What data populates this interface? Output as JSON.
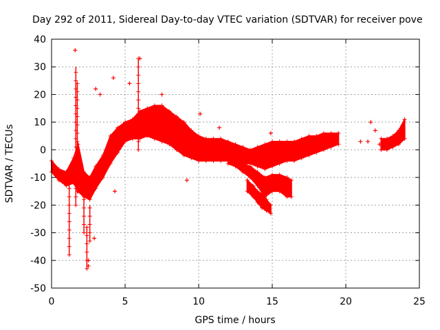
{
  "chart_data": {
    "type": "scatter",
    "title": "Day 292 of 2011, Sidereal Day-to-day VTEC variation (SDTVAR) for receiver pove",
    "xlabel": "GPS time / hours",
    "ylabel": "SDTVAR / TECUs",
    "xlim": [
      0,
      25
    ],
    "ylim": [
      -50,
      40
    ],
    "xticks": [
      0,
      5,
      10,
      15,
      20,
      25
    ],
    "yticks": [
      40,
      30,
      20,
      10,
      0,
      -10,
      -20,
      -30,
      -40,
      -50
    ],
    "grid": true,
    "series": [
      {
        "name": "SDTVAR",
        "color": "#ff0000",
        "marker": "+",
        "bands": [
          {
            "x": [
              0.0,
              0.5,
              1.0,
              1.5,
              1.8,
              2.2,
              2.6,
              3.0,
              3.5,
              4.0,
              4.5,
              5.0,
              5.5,
              6.0,
              6.5,
              7.0,
              7.5,
              8.0,
              8.5,
              9.0,
              9.5,
              10.0,
              10.5,
              11.0,
              11.5,
              12.0,
              12.5,
              13.0,
              13.5,
              14.0,
              14.5,
              15.0,
              15.5,
              16.0,
              16.5,
              17.0,
              17.5,
              18.0,
              18.5,
              19.0,
              19.5
            ],
            "low": [
              -8,
              -11,
              -13,
              -12,
              -15,
              -17,
              -18,
              -14,
              -10,
              -5,
              -1,
              3,
              4,
              4,
              5,
              4,
              3,
              2,
              0,
              -2,
              -3,
              -4,
              -4,
              -4,
              -4,
              -4,
              -4,
              -5,
              -5,
              -6,
              -7,
              -6,
              -5,
              -4,
              -4,
              -3,
              -2,
              -1,
              0,
              1,
              2
            ],
            "high": [
              -4,
              -7,
              -8,
              -3,
              2,
              -8,
              -10,
              -6,
              -2,
              5,
              8,
              10,
              11,
              14,
              15,
              16,
              16,
              14,
              12,
              10,
              7,
              5,
              4,
              4,
              4,
              3,
              2,
              1,
              0,
              1,
              2,
              3,
              3,
              3,
              3,
              4,
              5,
              5,
              6,
              6,
              6
            ]
          },
          {
            "x": [
              12.0,
              12.5,
              13.0,
              13.5,
              14.0,
              14.5,
              15.0,
              15.5,
              16.0,
              16.3
            ],
            "low": [
              -5,
              -6,
              -8,
              -10,
              -13,
              -17,
              -15,
              -15,
              -17,
              -17
            ],
            "high": [
              -3,
              -4,
              -5,
              -6,
              -8,
              -10,
              -9,
              -9,
              -10,
              -11
            ]
          },
          {
            "x": [
              13.3,
              13.7,
              14.0,
              14.3,
              14.6,
              14.9
            ],
            "low": [
              -15,
              -17,
              -19,
              -21,
              -22,
              -23
            ],
            "high": [
              -11,
              -13,
              -15,
              -16,
              -18,
              -20
            ]
          },
          {
            "x": [
              22.4,
              22.8,
              23.2,
              23.6,
              24.0
            ],
            "low": [
              0,
              0,
              1,
              2,
              4
            ],
            "high": [
              4,
              4,
              5,
              7,
              11
            ]
          }
        ],
        "stems": [
          {
            "x": 1.2,
            "low": -38,
            "high": -10
          },
          {
            "x": 1.65,
            "low": -20,
            "high": 30
          },
          {
            "x": 1.75,
            "low": -15,
            "high": 24
          },
          {
            "x": 2.2,
            "low": -30,
            "high": -14
          },
          {
            "x": 2.4,
            "low": -43,
            "high": -28
          },
          {
            "x": 2.6,
            "low": -33,
            "high": -20
          },
          {
            "x": 5.9,
            "low": 0,
            "high": 33
          }
        ],
        "outliers": [
          [
            1.6,
            36
          ],
          [
            2.5,
            -42
          ],
          [
            2.5,
            -40
          ],
          [
            2.9,
            -32
          ],
          [
            3.0,
            22
          ],
          [
            3.3,
            20
          ],
          [
            4.2,
            26
          ],
          [
            4.3,
            -15
          ],
          [
            5.3,
            24
          ],
          [
            6.0,
            33
          ],
          [
            7.5,
            20
          ],
          [
            9.2,
            -11
          ],
          [
            10.1,
            13
          ],
          [
            11.4,
            8
          ],
          [
            14.9,
            6
          ],
          [
            15.0,
            -14
          ],
          [
            21.0,
            3
          ],
          [
            21.5,
            3
          ],
          [
            21.7,
            10
          ],
          [
            22.0,
            7
          ],
          [
            22.3,
            2
          ]
        ]
      }
    ]
  }
}
